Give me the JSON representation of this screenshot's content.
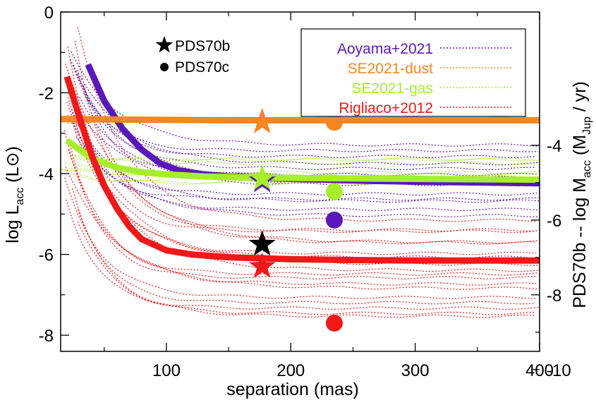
{
  "chart_data": {
    "type": "line",
    "xlabel": "separation (mas)",
    "ylabel_left": {
      "main": "log L",
      "sub": "acc",
      "unit": "(L⊙)"
    },
    "ylabel_right": {
      "prefix": "PDS70b -- log M",
      "sub1": "acc",
      "mid": " (M",
      "sub2": "Jup",
      "suffix": " / yr)"
    },
    "xlim": [
      15,
      400
    ],
    "ylim": [
      -8.4,
      0
    ],
    "x_ticks": [
      100,
      200,
      300,
      400
    ],
    "x_tick_labels": [
      "100",
      "200",
      "300",
      "400"
    ],
    "y_ticks": [
      0,
      -2,
      -4,
      -6,
      -8
    ],
    "y_tick_labels": [
      "0",
      "-2",
      "-4",
      "-6",
      "-8"
    ],
    "y2_ticks": [
      -3.3,
      -5.15,
      -7.0,
      -8.85
    ],
    "y2_tick_labels": [
      "-4",
      "-6",
      "-8",
      "-10"
    ],
    "grid": false,
    "legend_position": "top-right",
    "markers_legend": [
      {
        "symbol": "star",
        "label": "PDS70b"
      },
      {
        "symbol": "circle",
        "label": "PDS70c"
      }
    ],
    "series": [
      {
        "name": "Aoyama+2021",
        "color": "#5a18b8",
        "x": [
          37,
          50,
          65,
          80,
          95,
          110,
          130,
          150,
          175,
          200,
          250,
          300,
          350,
          400
        ],
        "y": [
          -1.3,
          -2.2,
          -2.9,
          -3.4,
          -3.75,
          -3.92,
          -4.02,
          -4.07,
          -4.1,
          -4.13,
          -4.17,
          -4.2,
          -4.22,
          -4.24
        ]
      },
      {
        "name": "SE2021-dust",
        "color": "#f7861c",
        "x": [
          15,
          50,
          100,
          150,
          200,
          250,
          300,
          350,
          400
        ],
        "y": [
          -2.65,
          -2.66,
          -2.67,
          -2.68,
          -2.68,
          -2.68,
          -2.68,
          -2.68,
          -2.68
        ]
      },
      {
        "name": "SE2021-gas",
        "color": "#a6ef2a",
        "x": [
          20,
          40,
          60,
          80,
          100,
          130,
          160,
          200,
          250,
          300,
          350,
          400
        ],
        "y": [
          -3.18,
          -3.62,
          -3.85,
          -3.96,
          -4.02,
          -4.07,
          -4.09,
          -4.11,
          -4.12,
          -4.13,
          -4.14,
          -4.15
        ]
      },
      {
        "name": "Rigliaco+2012",
        "color": "#f01818",
        "x": [
          20,
          30,
          40,
          50,
          60,
          70,
          80,
          100,
          120,
          150,
          200,
          250,
          300,
          350,
          400
        ],
        "y": [
          -1.6,
          -2.6,
          -3.55,
          -4.3,
          -4.85,
          -5.3,
          -5.62,
          -5.9,
          -6.0,
          -6.07,
          -6.12,
          -6.14,
          -6.15,
          -6.15,
          -6.15
        ]
      }
    ],
    "points": [
      {
        "target": "PDS70b",
        "symbol": "star",
        "x": 177,
        "y": -2.72,
        "color": "#f7861c"
      },
      {
        "target": "PDS70b",
        "symbol": "star",
        "x": 177,
        "y": -4.18,
        "color": "#5a18b8"
      },
      {
        "target": "PDS70b",
        "symbol": "star",
        "x": 177,
        "y": -4.12,
        "color": "#a6ef2a"
      },
      {
        "target": "PDS70b",
        "symbol": "star",
        "x": 177,
        "y": -5.75,
        "color": "#000000"
      },
      {
        "target": "PDS70b",
        "symbol": "star",
        "x": 177,
        "y": -6.3,
        "color": "#f01818"
      },
      {
        "target": "PDS70c",
        "symbol": "circle",
        "x": 235,
        "y": -2.73,
        "color": "#f7861c"
      },
      {
        "target": "PDS70c",
        "symbol": "circle",
        "x": 235,
        "y": -4.45,
        "color": "#a6ef2a"
      },
      {
        "target": "PDS70c",
        "symbol": "circle",
        "x": 235,
        "y": -5.15,
        "color": "#5a18b8"
      },
      {
        "target": "PDS70c",
        "symbol": "circle",
        "x": 235,
        "y": -7.7,
        "color": "#f01818"
      }
    ],
    "dotted_bundles": [
      {
        "color": "#5a18b8",
        "count": 14,
        "start_x": 22,
        "y_start_min": -1.0,
        "y_start_max": -3.0,
        "y_end_min": -3.3,
        "y_end_max": -5.0
      },
      {
        "color": "#f7861c",
        "count": 3,
        "start_x": 15,
        "y_start_min": -2.63,
        "y_start_max": -2.72,
        "y_end_min": -2.62,
        "y_end_max": -2.74
      },
      {
        "color": "#a6ef2a",
        "count": 8,
        "start_x": 15,
        "y_start_min": -3.5,
        "y_start_max": -4.0,
        "y_end_min": -3.6,
        "y_end_max": -4.3
      },
      {
        "color": "#f01818",
        "count": 18,
        "start_x": 18,
        "y_start_min": -0.3,
        "y_start_max": -5.2,
        "y_end_min": -5.2,
        "y_end_max": -7.6
      }
    ]
  }
}
